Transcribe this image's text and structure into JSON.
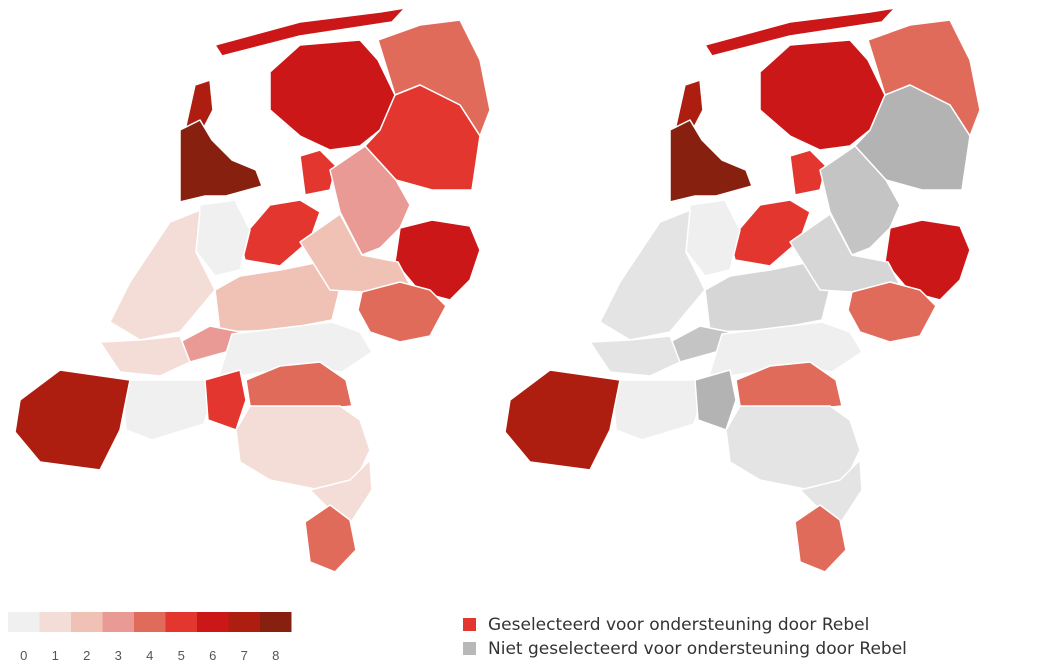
{
  "scale": {
    "ticks": [
      0,
      1,
      2,
      3,
      4,
      5,
      6,
      7,
      8
    ],
    "colors": [
      "#f0f0f0",
      "#f4dcd7",
      "#f0c2b6",
      "#e99a95",
      "#e06b5b",
      "#e2362f",
      "#cc1719",
      "#ad1e10",
      "#88200f"
    ]
  },
  "gray_colors": [
    "#efefef",
    "#e4e4e4",
    "#d6d6d6",
    "#c4c4c4",
    "#b3b3b3",
    "#b3b3b3",
    "#b3b3b3",
    "#b3b3b3",
    "#b3b3b3"
  ],
  "regions": {
    "values": [
      6,
      7,
      8,
      6,
      4,
      5,
      5,
      5,
      3,
      6,
      0,
      1,
      2,
      2,
      4,
      3,
      1,
      0,
      7,
      5,
      4,
      1,
      1,
      4
    ],
    "selected": [
      true,
      true,
      true,
      true,
      true,
      false,
      true,
      true,
      false,
      true,
      false,
      false,
      false,
      false,
      true,
      false,
      false,
      false,
      true,
      false,
      true,
      false,
      false,
      true
    ]
  },
  "legend": {
    "items": [
      {
        "label": "Geselecteerd voor ondersteuning door Rebel",
        "color": "#e2362f"
      },
      {
        "label": "Niet geselecteerd voor ondersteuning door Rebel",
        "color": "#b8b8b8"
      }
    ]
  }
}
